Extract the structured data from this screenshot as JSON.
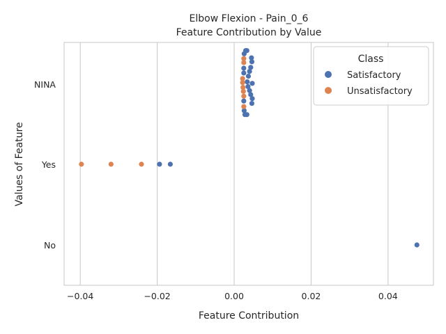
{
  "chart_data": {
    "type": "scatter",
    "title": "Elbow Flexion - Pain_0_6",
    "subtitle": "Feature Contribution by Value",
    "xlabel": "Feature Contribution",
    "ylabel": "Values of Feature",
    "xlim": [
      -0.0442,
      0.0518
    ],
    "x_ticks": [
      -0.04,
      -0.02,
      0.0,
      0.02,
      0.04
    ],
    "x_tick_labels": [
      "−0.04",
      "−0.02",
      "0.00",
      "0.02",
      "0.04"
    ],
    "categories": [
      "NINA",
      "Yes",
      "No"
    ],
    "grid": "x-only",
    "legend": {
      "title": "Class",
      "position": "top-right",
      "entries": [
        {
          "name": "Satisfactory",
          "color": "#4c72b0"
        },
        {
          "name": "Unsatisfactory",
          "color": "#dd8452"
        }
      ]
    },
    "series": [
      {
        "name": "Satisfactory",
        "color": "#4c72b0",
        "points": [
          {
            "category": "NINA",
            "x": 0.003,
            "offset": -0.42
          },
          {
            "category": "NINA",
            "x": 0.0033,
            "offset": -0.42
          },
          {
            "category": "NINA",
            "x": 0.0026,
            "offset": -0.38
          },
          {
            "category": "NINA",
            "x": 0.0045,
            "offset": -0.33
          },
          {
            "category": "NINA",
            "x": 0.0046,
            "offset": -0.28
          },
          {
            "category": "NINA",
            "x": 0.0043,
            "offset": -0.21
          },
          {
            "category": "NINA",
            "x": 0.0025,
            "offset": -0.2
          },
          {
            "category": "NINA",
            "x": 0.004,
            "offset": -0.16
          },
          {
            "category": "NINA",
            "x": 0.0025,
            "offset": -0.14
          },
          {
            "category": "NINA",
            "x": 0.0037,
            "offset": -0.1
          },
          {
            "category": "NINA",
            "x": 0.0034,
            "offset": -0.03
          },
          {
            "category": "NINA",
            "x": 0.0047,
            "offset": -0.01
          },
          {
            "category": "NINA",
            "x": 0.0036,
            "offset": 0.03
          },
          {
            "category": "NINA",
            "x": 0.004,
            "offset": 0.08
          },
          {
            "category": "NINA",
            "x": 0.0043,
            "offset": 0.13
          },
          {
            "category": "NINA",
            "x": 0.0047,
            "offset": 0.18
          },
          {
            "category": "NINA",
            "x": 0.0025,
            "offset": 0.21
          },
          {
            "category": "NINA",
            "x": 0.0046,
            "offset": 0.24
          },
          {
            "category": "NINA",
            "x": 0.0026,
            "offset": 0.33
          },
          {
            "category": "NINA",
            "x": 0.0028,
            "offset": 0.38
          },
          {
            "category": "NINA",
            "x": 0.0033,
            "offset": 0.38
          },
          {
            "category": "Yes",
            "x": -0.0194,
            "offset": 0
          },
          {
            "category": "Yes",
            "x": -0.0166,
            "offset": 0
          },
          {
            "category": "No",
            "x": 0.0475,
            "offset": 0
          }
        ]
      },
      {
        "name": "Unsatisfactory",
        "color": "#dd8452",
        "points": [
          {
            "category": "NINA",
            "x": 0.0025,
            "offset": -0.32
          },
          {
            "category": "NINA",
            "x": 0.0025,
            "offset": -0.27
          },
          {
            "category": "NINA",
            "x": 0.0022,
            "offset": -0.07
          },
          {
            "category": "NINA",
            "x": 0.0022,
            "offset": -0.02
          },
          {
            "category": "NINA",
            "x": 0.0023,
            "offset": 0.04
          },
          {
            "category": "NINA",
            "x": 0.0024,
            "offset": 0.09
          },
          {
            "category": "NINA",
            "x": 0.0025,
            "offset": 0.15
          },
          {
            "category": "NINA",
            "x": 0.0025,
            "offset": 0.28
          },
          {
            "category": "Yes",
            "x": -0.0397,
            "offset": 0
          },
          {
            "category": "Yes",
            "x": -0.032,
            "offset": 0
          },
          {
            "category": "Yes",
            "x": -0.0241,
            "offset": 0
          }
        ]
      }
    ]
  }
}
